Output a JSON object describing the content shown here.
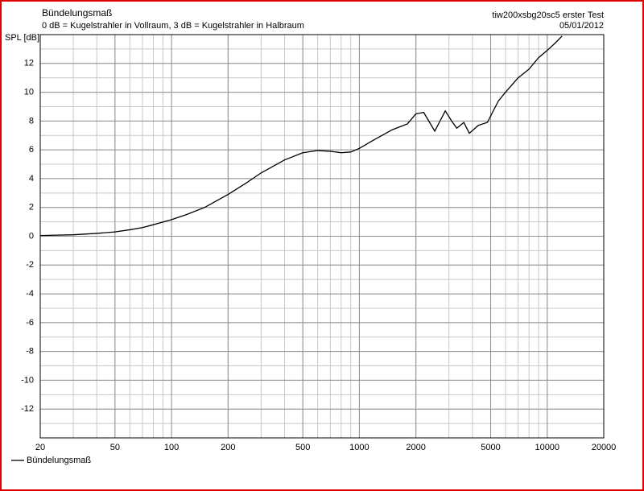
{
  "chart_data": {
    "type": "line",
    "title": "Bündelungsmaß",
    "subtitle": "0 dB = Kugelstrahler in Vollraum, 3 dB = Kugelstrahler in Halbraum",
    "annotations": [
      "tiw200xsbg20sc5  erster Test",
      "05/01/2012"
    ],
    "y_label": "SPL [dB]",
    "x_log": true,
    "grid": true,
    "legend": "bottom-left",
    "xlim": [
      20,
      20000
    ],
    "xticks": [
      20,
      50,
      100,
      200,
      500,
      1000,
      2000,
      5000,
      10000,
      20000
    ],
    "ylim": [
      -14,
      14
    ],
    "yticks": [
      -12,
      -10,
      -8,
      -6,
      -4,
      -2,
      0,
      2,
      4,
      6,
      8,
      10,
      12
    ],
    "x": [
      20,
      30,
      40,
      50,
      60,
      70,
      80,
      100,
      120,
      150,
      200,
      250,
      300,
      400,
      500,
      600,
      700,
      800,
      900,
      1000,
      1200,
      1500,
      1800,
      2000,
      2200,
      2520,
      2866,
      3100,
      3300,
      3600,
      3850,
      4300,
      4800,
      5500,
      6000,
      7000,
      8000,
      9000,
      10000,
      11000,
      12000
    ],
    "series": [
      {
        "name": "Bündelungsmaß",
        "color": "#000000",
        "values": [
          0.05,
          0.1,
          0.2,
          0.3,
          0.45,
          0.6,
          0.8,
          1.15,
          1.5,
          2.0,
          2.9,
          3.7,
          4.4,
          5.3,
          5.8,
          5.95,
          5.9,
          5.8,
          5.85,
          6.1,
          6.7,
          7.4,
          7.8,
          8.5,
          8.6,
          7.3,
          8.7,
          8.0,
          7.5,
          7.9,
          7.15,
          7.7,
          7.9,
          9.4,
          10.0,
          11.0,
          11.6,
          12.4,
          12.9,
          13.4,
          13.9
        ]
      }
    ]
  }
}
